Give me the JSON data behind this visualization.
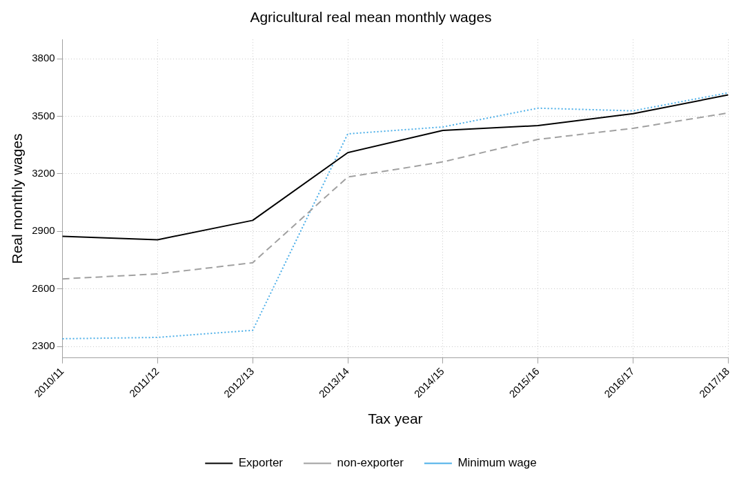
{
  "chart_data": {
    "type": "line",
    "title": "Agricultural real mean monthly wages",
    "xlabel": "Tax year",
    "ylabel": "Real monthly wages",
    "categories": [
      "2010/11",
      "2011/12",
      "2012/13",
      "2013/14",
      "2014/15",
      "2015/16",
      "2016/17",
      "2017/18"
    ],
    "series": [
      {
        "name": "Exporter",
        "color": "#000000",
        "line_style": "solid",
        "values": [
          2874,
          2856,
          2957,
          3310,
          3426,
          3451,
          3513,
          3611
        ]
      },
      {
        "name": "non-exporter",
        "color": "#a0a0a0",
        "line_style": "dashed",
        "values": [
          2652,
          2678,
          2736,
          3183,
          3262,
          3379,
          3437,
          3517
        ]
      },
      {
        "name": "Minimum wage",
        "color": "#4aaee8",
        "line_style": "dotted",
        "values": [
          2340,
          2347,
          2384,
          3408,
          3444,
          3542,
          3528,
          3622
        ]
      }
    ],
    "ylim": [
      2240,
      3900
    ],
    "yticks": [
      2300,
      2600,
      2900,
      3200,
      3500,
      3800
    ],
    "grid": true,
    "legend": "bottom",
    "marker": "none"
  }
}
